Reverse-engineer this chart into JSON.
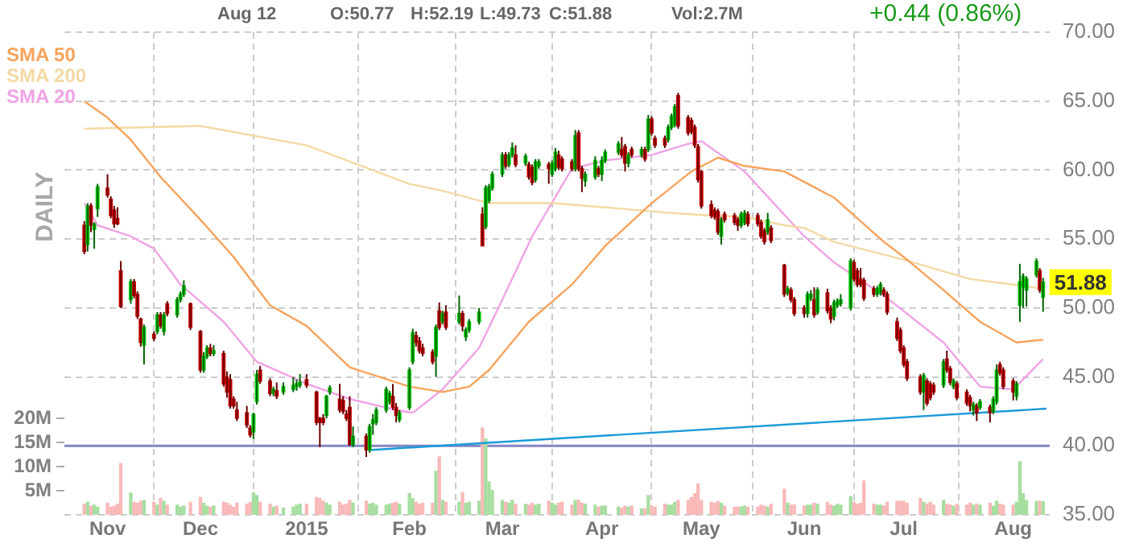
{
  "chart_data": {
    "type": "candlestick",
    "annotations": [
      "Aug 12",
      "O:50.77",
      "H:52.19",
      "L:49.73",
      "C:51.88",
      "Vol:2.7M",
      "+0.44 (0.86%)",
      "DAILY",
      {
        "text": "51.88",
        "x": "2015-08-12",
        "y": 51.88
      }
    ],
    "x": [
      "2014-10-27",
      "2014-10-28",
      "2014-10-29",
      "2014-10-30",
      "2014-10-31",
      "2014-11-03",
      "2014-11-04",
      "2014-11-05",
      "2014-11-06",
      "2014-11-07",
      "2014-11-10",
      "2014-11-11",
      "2014-11-12",
      "2014-11-13",
      "2014-11-14",
      "2014-11-17",
      "2014-11-18",
      "2014-11-19",
      "2014-11-20",
      "2014-11-21",
      "2014-11-24",
      "2014-11-25",
      "2014-11-26",
      "2014-11-28",
      "2014-12-01",
      "2014-12-02",
      "2014-12-03",
      "2014-12-04",
      "2014-12-05",
      "2014-12-08",
      "2014-12-09",
      "2014-12-10",
      "2014-12-11",
      "2014-12-12",
      "2014-12-15",
      "2014-12-16",
      "2014-12-17",
      "2014-12-18",
      "2014-12-19",
      "2014-12-22",
      "2014-12-23",
      "2014-12-24",
      "2014-12-26",
      "2014-12-29",
      "2014-12-30",
      "2014-12-31",
      "2015-01-02",
      "2015-01-05",
      "2015-01-06",
      "2015-01-07",
      "2015-01-08",
      "2015-01-09",
      "2015-01-12",
      "2015-01-13",
      "2015-01-14",
      "2015-01-15",
      "2015-01-16",
      "2015-01-20",
      "2015-01-21",
      "2015-01-22",
      "2015-01-23",
      "2015-01-26",
      "2015-01-27",
      "2015-01-28",
      "2015-01-29",
      "2015-01-30",
      "2015-02-02",
      "2015-02-03",
      "2015-02-04",
      "2015-02-05",
      "2015-02-06",
      "2015-02-09",
      "2015-02-10",
      "2015-02-11",
      "2015-02-12",
      "2015-02-13",
      "2015-02-17",
      "2015-02-18",
      "2015-02-19",
      "2015-02-20",
      "2015-02-23",
      "2015-02-24",
      "2015-02-25",
      "2015-02-26",
      "2015-02-27",
      "2015-03-02",
      "2015-03-03",
      "2015-03-04",
      "2015-03-05",
      "2015-03-06",
      "2015-03-09",
      "2015-03-10",
      "2015-03-11",
      "2015-03-12",
      "2015-03-13",
      "2015-03-16",
      "2015-03-17",
      "2015-03-18",
      "2015-03-19",
      "2015-03-20",
      "2015-03-23",
      "2015-03-24",
      "2015-03-25",
      "2015-03-26",
      "2015-03-27",
      "2015-03-30",
      "2015-03-31",
      "2015-04-01",
      "2015-04-02",
      "2015-04-06",
      "2015-04-07",
      "2015-04-08",
      "2015-04-09",
      "2015-04-10",
      "2015-04-13",
      "2015-04-14",
      "2015-04-15",
      "2015-04-16",
      "2015-04-17",
      "2015-04-20",
      "2015-04-21",
      "2015-04-22",
      "2015-04-23",
      "2015-04-24",
      "2015-04-27",
      "2015-04-28",
      "2015-04-29",
      "2015-04-30",
      "2015-05-01",
      "2015-05-04",
      "2015-05-05",
      "2015-05-06",
      "2015-05-07",
      "2015-05-08",
      "2015-05-11",
      "2015-05-12",
      "2015-05-13",
      "2015-05-14",
      "2015-05-15",
      "2015-05-18",
      "2015-05-19",
      "2015-05-20",
      "2015-05-21",
      "2015-05-22",
      "2015-05-26",
      "2015-05-27",
      "2015-05-28",
      "2015-05-29",
      "2015-06-01",
      "2015-06-02",
      "2015-06-03",
      "2015-06-04",
      "2015-06-05",
      "2015-06-08",
      "2015-06-09",
      "2015-06-10",
      "2015-06-11",
      "2015-06-12",
      "2015-06-15",
      "2015-06-16",
      "2015-06-17",
      "2015-06-18",
      "2015-06-19",
      "2015-06-22",
      "2015-06-23",
      "2015-06-24",
      "2015-06-25",
      "2015-06-26",
      "2015-06-29",
      "2015-06-30",
      "2015-07-01",
      "2015-07-02",
      "2015-07-06",
      "2015-07-07",
      "2015-07-08",
      "2015-07-09",
      "2015-07-10",
      "2015-07-13",
      "2015-07-14",
      "2015-07-15",
      "2015-07-16",
      "2015-07-17",
      "2015-07-20",
      "2015-07-21",
      "2015-07-22",
      "2015-07-23",
      "2015-07-24",
      "2015-07-27",
      "2015-07-28",
      "2015-07-29",
      "2015-07-30",
      "2015-07-31",
      "2015-08-03",
      "2015-08-04",
      "2015-08-05",
      "2015-08-06",
      "2015-08-07",
      "2015-08-10",
      "2015-08-11",
      "2015-08-12"
    ],
    "ohlc": [
      [
        56.0,
        56.3,
        53.9,
        54.1
      ],
      [
        54.6,
        57.6,
        54.1,
        57.4
      ],
      [
        57.4,
        57.6,
        55.5,
        56.0
      ],
      [
        55.7,
        56.2,
        54.3,
        56.1
      ],
      [
        57.2,
        59.0,
        56.6,
        58.8
      ],
      [
        58.7,
        59.7,
        58.0,
        58.2
      ],
      [
        57.9,
        58.1,
        56.5,
        56.7
      ],
      [
        57.1,
        57.4,
        55.8,
        56.1
      ],
      [
        56.5,
        57.3,
        56.0,
        56.1
      ],
      [
        52.7,
        53.4,
        50.0,
        50.1
      ],
      [
        50.6,
        52.1,
        50.3,
        51.9
      ],
      [
        51.9,
        52.1,
        50.7,
        50.9
      ],
      [
        51.0,
        51.2,
        49.2,
        49.4
      ],
      [
        49.2,
        49.3,
        47.2,
        47.5
      ],
      [
        47.3,
        48.8,
        45.9,
        48.6
      ],
      [
        48.1,
        48.3,
        47.6,
        47.8
      ],
      [
        48.3,
        49.7,
        48.1,
        49.5
      ],
      [
        49.5,
        49.7,
        48.5,
        48.7
      ],
      [
        48.3,
        49.7,
        48.0,
        49.5
      ],
      [
        50.3,
        50.5,
        49.4,
        49.6
      ],
      [
        49.5,
        50.8,
        49.3,
        50.6
      ],
      [
        50.6,
        51.2,
        50.4,
        51.0
      ],
      [
        51.0,
        52.0,
        50.8,
        51.6
      ],
      [
        50.3,
        50.4,
        48.4,
        48.6
      ],
      [
        48.3,
        48.4,
        45.3,
        45.5
      ],
      [
        45.5,
        46.8,
        45.3,
        46.5
      ],
      [
        46.5,
        47.3,
        46.3,
        47.1
      ],
      [
        47.1,
        47.4,
        46.5,
        46.7
      ],
      [
        46.7,
        47.3,
        46.5,
        46.9
      ],
      [
        46.7,
        46.9,
        44.3,
        44.5
      ],
      [
        45.0,
        45.4,
        43.5,
        43.9
      ],
      [
        44.8,
        45.2,
        42.7,
        42.9
      ],
      [
        43.4,
        43.6,
        42.7,
        42.9
      ],
      [
        42.6,
        43.2,
        41.8,
        42.0
      ],
      [
        42.4,
        42.9,
        41.3,
        41.5
      ],
      [
        41.3,
        41.5,
        40.6,
        40.8
      ],
      [
        41.0,
        42.4,
        40.5,
        42.3
      ],
      [
        43.2,
        45.5,
        43.0,
        45.2
      ],
      [
        45.5,
        45.8,
        44.5,
        44.7
      ],
      [
        44.7,
        44.9,
        43.6,
        43.8
      ],
      [
        43.8,
        44.3,
        43.6,
        44.1
      ],
      [
        44.0,
        44.6,
        43.4,
        43.6
      ],
      [
        43.9,
        44.6,
        43.7,
        44.3
      ],
      [
        44.1,
        45.0,
        43.9,
        44.4
      ],
      [
        44.3,
        44.8,
        44.0,
        44.5
      ],
      [
        44.4,
        45.2,
        44.2,
        44.6
      ],
      [
        44.8,
        45.2,
        44.2,
        44.4
      ],
      [
        43.9,
        44.0,
        41.5,
        41.7
      ],
      [
        42.0,
        42.1,
        39.9,
        41.7
      ],
      [
        42.0,
        42.3,
        41.5,
        41.7
      ],
      [
        42.2,
        43.7,
        42.0,
        43.6
      ],
      [
        43.9,
        44.4,
        43.7,
        44.2
      ],
      [
        43.4,
        44.5,
        42.4,
        42.6
      ],
      [
        43.3,
        43.6,
        42.3,
        42.5
      ],
      [
        42.3,
        42.6,
        41.8,
        42.0
      ],
      [
        42.8,
        43.6,
        40.0,
        40.1
      ],
      [
        40.1,
        41.4,
        39.9,
        40.7
      ],
      [
        40.7,
        40.9,
        39.2,
        39.7
      ],
      [
        39.7,
        41.6,
        39.5,
        41.4
      ],
      [
        41.6,
        42.3,
        40.8,
        41.9
      ],
      [
        41.7,
        42.8,
        41.5,
        42.6
      ],
      [
        42.6,
        44.3,
        42.4,
        44.1
      ],
      [
        43.2,
        44.0,
        43.0,
        43.8
      ],
      [
        43.6,
        44.5,
        42.6,
        42.8
      ],
      [
        42.8,
        43.1,
        41.7,
        42.2
      ],
      [
        41.9,
        42.6,
        41.7,
        42.4
      ],
      [
        42.8,
        45.7,
        42.6,
        45.5
      ],
      [
        46.1,
        48.5,
        45.9,
        48.2
      ],
      [
        48.0,
        48.3,
        47.2,
        47.5
      ],
      [
        47.6,
        47.9,
        46.7,
        46.9
      ],
      [
        47.1,
        47.4,
        46.5,
        46.7
      ],
      [
        46.8,
        47.0,
        45.9,
        46.1
      ],
      [
        46.5,
        48.8,
        45.0,
        48.6
      ],
      [
        49.8,
        50.4,
        48.4,
        48.6
      ],
      [
        49.0,
        49.8,
        48.8,
        49.6
      ],
      [
        49.7,
        50.2,
        48.4,
        48.6
      ],
      [
        49.0,
        50.9,
        48.8,
        49.6
      ],
      [
        49.6,
        49.8,
        48.3,
        48.7
      ],
      [
        47.9,
        48.6,
        47.6,
        48.4
      ],
      [
        48.4,
        49.2,
        48.2,
        49.0
      ],
      [
        49.0,
        50.0,
        48.8,
        49.7
      ],
      [
        56.8,
        57.3,
        54.5,
        54.5
      ],
      [
        55.9,
        58.9,
        55.7,
        58.7
      ],
      [
        57.8,
        59.0,
        57.6,
        58.8
      ],
      [
        58.7,
        59.9,
        58.5,
        59.7
      ],
      [
        59.7,
        61.3,
        59.5,
        61.1
      ],
      [
        61.1,
        61.3,
        60.1,
        60.3
      ],
      [
        60.4,
        61.3,
        60.2,
        61.1
      ],
      [
        61.1,
        62.0,
        60.9,
        61.6
      ],
      [
        61.1,
        61.8,
        60.2,
        60.4
      ],
      [
        60.5,
        61.2,
        60.3,
        61.0
      ],
      [
        60.4,
        60.6,
        59.3,
        59.5
      ],
      [
        60.2,
        60.4,
        58.9,
        59.1
      ],
      [
        59.3,
        60.8,
        59.1,
        60.6
      ],
      [
        60.3,
        60.8,
        60.1,
        60.6
      ],
      [
        60.4,
        60.6,
        59.0,
        60.1
      ],
      [
        59.7,
        60.7,
        59.5,
        60.5
      ],
      [
        60.1,
        61.6,
        59.9,
        61.3
      ],
      [
        61.1,
        61.4,
        60.0,
        60.2
      ],
      [
        60.8,
        61.0,
        59.9,
        60.1
      ],
      [
        60.6,
        60.8,
        59.9,
        60.1
      ],
      [
        60.1,
        62.9,
        59.9,
        62.5
      ],
      [
        62.7,
        62.9,
        59.9,
        60.1
      ],
      [
        60.1,
        60.3,
        58.4,
        59.4
      ],
      [
        59.2,
        59.9,
        58.8,
        59.7
      ],
      [
        59.5,
        61.0,
        59.3,
        60.7
      ],
      [
        60.1,
        60.3,
        59.5,
        59.7
      ],
      [
        59.7,
        61.0,
        59.2,
        60.7
      ],
      [
        60.7,
        61.5,
        60.5,
        61.3
      ],
      [
        61.3,
        62.1,
        61.1,
        61.9
      ],
      [
        61.5,
        62.4,
        60.9,
        61.1
      ],
      [
        61.7,
        61.9,
        59.9,
        60.5
      ],
      [
        60.5,
        61.3,
        60.2,
        61.1
      ],
      [
        61.5,
        61.7,
        60.9,
        61.1
      ],
      [
        61.1,
        61.7,
        60.9,
        61.5
      ],
      [
        61.5,
        61.7,
        60.6,
        60.8
      ],
      [
        61.5,
        64.0,
        61.3,
        63.7
      ],
      [
        63.7,
        63.9,
        62.5,
        62.7
      ],
      [
        62.3,
        62.5,
        61.6,
        61.8
      ],
      [
        62.3,
        62.5,
        61.6,
        61.8
      ],
      [
        62.2,
        63.3,
        62.0,
        63.1
      ],
      [
        63.1,
        64.1,
        62.9,
        63.9
      ],
      [
        63.3,
        64.8,
        63.1,
        64.6
      ],
      [
        65.4,
        65.6,
        63.0,
        63.2
      ],
      [
        63.8,
        64.0,
        62.5,
        62.7
      ],
      [
        63.6,
        63.8,
        62.6,
        62.8
      ],
      [
        63.1,
        63.3,
        61.6,
        61.8
      ],
      [
        61.7,
        61.9,
        59.1,
        59.3
      ],
      [
        59.9,
        60.0,
        57.2,
        57.4
      ],
      [
        57.5,
        57.8,
        56.5,
        56.7
      ],
      [
        57.1,
        57.3,
        56.4,
        56.6
      ],
      [
        57.0,
        57.2,
        55.3,
        55.5
      ],
      [
        55.2,
        56.6,
        54.6,
        56.4
      ],
      [
        56.8,
        57.0,
        56.2,
        56.4
      ],
      [
        56.7,
        56.9,
        56.0,
        56.2
      ],
      [
        56.4,
        56.6,
        55.6,
        56.0
      ],
      [
        56.0,
        57.0,
        55.8,
        56.8
      ],
      [
        56.2,
        57.1,
        56.0,
        56.9
      ],
      [
        56.8,
        57.0,
        55.9,
        56.1
      ],
      [
        56.7,
        56.9,
        55.9,
        56.1
      ],
      [
        56.2,
        56.4,
        55.0,
        55.2
      ],
      [
        55.6,
        55.8,
        54.6,
        54.8
      ],
      [
        55.5,
        56.9,
        55.3,
        56.4
      ],
      [
        55.8,
        56.0,
        54.7,
        54.9
      ],
      [
        53.1,
        53.2,
        50.8,
        51.0
      ],
      [
        51.1,
        51.6,
        50.9,
        51.4
      ],
      [
        51.3,
        51.5,
        50.4,
        50.6
      ],
      [
        50.6,
        50.8,
        49.4,
        49.6
      ],
      [
        50.0,
        50.2,
        49.3,
        49.6
      ],
      [
        49.6,
        51.2,
        49.3,
        51.0
      ],
      [
        50.7,
        51.3,
        50.5,
        51.0
      ],
      [
        50.6,
        51.5,
        49.3,
        49.5
      ],
      [
        49.7,
        51.5,
        49.5,
        51.3
      ],
      [
        51.1,
        51.4,
        49.6,
        49.8
      ],
      [
        50.0,
        50.2,
        48.9,
        49.2
      ],
      [
        49.4,
        50.6,
        49.1,
        50.4
      ],
      [
        50.2,
        50.7,
        50.0,
        50.5
      ],
      [
        50.3,
        51.0,
        50.1,
        50.6
      ],
      [
        50.0,
        53.6,
        49.8,
        53.4
      ],
      [
        53.3,
        53.5,
        51.9,
        52.1
      ],
      [
        52.7,
        52.9,
        51.5,
        51.7
      ],
      [
        52.1,
        52.9,
        51.5,
        51.7
      ],
      [
        52.0,
        52.2,
        50.5,
        50.7
      ],
      [
        51.4,
        51.6,
        50.8,
        51.0
      ],
      [
        51.0,
        51.6,
        50.8,
        51.4
      ],
      [
        51.1,
        51.9,
        50.9,
        51.7
      ],
      [
        51.3,
        51.5,
        50.8,
        51.0
      ],
      [
        51.0,
        51.2,
        49.5,
        49.7
      ],
      [
        49.0,
        49.3,
        47.6,
        47.8
      ],
      [
        48.4,
        48.6,
        46.7,
        46.9
      ],
      [
        47.1,
        47.3,
        45.7,
        45.9
      ],
      [
        46.1,
        46.3,
        44.7,
        44.9
      ],
      [
        45.0,
        45.2,
        43.7,
        43.9
      ],
      [
        43.9,
        45.3,
        42.6,
        45.1
      ],
      [
        44.7,
        44.9,
        42.9,
        43.1
      ],
      [
        44.5,
        44.7,
        43.3,
        43.5
      ],
      [
        44.4,
        44.6,
        43.7,
        43.9
      ],
      [
        44.4,
        46.3,
        44.2,
        46.1
      ],
      [
        46.3,
        46.9,
        45.3,
        45.5
      ],
      [
        45.6,
        45.8,
        44.4,
        44.6
      ],
      [
        44.3,
        44.9,
        44.1,
        44.7
      ],
      [
        44.5,
        44.7,
        43.3,
        43.5
      ],
      [
        43.9,
        44.1,
        42.9,
        43.1
      ],
      [
        43.5,
        43.7,
        42.5,
        42.9
      ],
      [
        42.6,
        43.2,
        42.2,
        43.0
      ],
      [
        42.9,
        43.1,
        41.8,
        42.4
      ],
      [
        42.8,
        43.4,
        42.6,
        43.2
      ],
      [
        42.8,
        43.0,
        41.7,
        42.4
      ],
      [
        42.5,
        43.6,
        42.3,
        43.4
      ],
      [
        43.2,
        45.9,
        43.0,
        45.5
      ],
      [
        45.9,
        46.1,
        45.1,
        45.3
      ],
      [
        45.5,
        45.7,
        44.1,
        44.3
      ],
      [
        44.7,
        44.9,
        43.3,
        43.9
      ],
      [
        43.6,
        44.7,
        43.3,
        44.5
      ],
      [
        50.2,
        53.2,
        49.0,
        51.9
      ],
      [
        51.5,
        52.5,
        50.0,
        52.3
      ],
      [
        51.3,
        52.3,
        50.1,
        52.1
      ],
      [
        52.4,
        53.6,
        52.2,
        53.4
      ],
      [
        52.7,
        52.9,
        51.1,
        51.3
      ],
      [
        50.77,
        52.19,
        49.73,
        51.88
      ]
    ],
    "xlim": [
      "2014-10-21",
      "2015-08-14"
    ],
    "xticks": [
      {
        "value": "2014-11-03",
        "label": "Nov"
      },
      {
        "value": "2014-12-01",
        "label": "Dec"
      },
      {
        "value": "2015-01-02",
        "label": "2015"
      },
      {
        "value": "2015-02-02",
        "label": "Feb"
      },
      {
        "value": "2015-03-02",
        "label": "Mar"
      },
      {
        "value": "2015-04-01",
        "label": "Apr"
      },
      {
        "value": "2015-05-01",
        "label": "May"
      },
      {
        "value": "2015-06-01",
        "label": "Jun"
      },
      {
        "value": "2015-07-01",
        "label": "Jul"
      },
      {
        "value": "2015-08-03",
        "label": "Aug"
      }
    ],
    "ylim": [
      35,
      70
    ],
    "yticks": [
      {
        "value": 35,
        "label": "35.00"
      },
      {
        "value": 40,
        "label": "40.00"
      },
      {
        "value": 45,
        "label": "45.00"
      },
      {
        "value": 50,
        "label": "50.00"
      },
      {
        "value": 55,
        "label": "55.00"
      },
      {
        "value": 60,
        "label": "60.00"
      },
      {
        "value": 65,
        "label": "65.00"
      },
      {
        "value": 70,
        "label": "70.00"
      }
    ],
    "y2lim": [
      0,
      100
    ],
    "y2ticks": [
      {
        "value": 5,
        "label": "5M"
      },
      {
        "value": 10,
        "label": "10M"
      },
      {
        "value": 15,
        "label": "15M"
      },
      {
        "value": 20,
        "label": "20M"
      }
    ],
    "series": [
      {
        "type": "bar",
        "axis": "y2",
        "colors": [
          "#f9b9b9",
          "#a6dea0",
          "#f9b9b9",
          "#a6dea0",
          "#a6dea0",
          "#f9b9b9",
          "#f9b9b9",
          "#f9b9b9",
          "#f9b9b9",
          "#f9b9b9",
          "#a6dea0",
          "#f9b9b9",
          "#f9b9b9",
          "#f9b9b9",
          "#a6dea0",
          "#f9b9b9",
          "#a6dea0",
          "#f9b9b9",
          "#a6dea0",
          "#f9b9b9",
          "#a6dea0",
          "#a6dea0",
          "#a6dea0",
          "#f9b9b9",
          "#f9b9b9",
          "#a6dea0",
          "#a6dea0",
          "#f9b9b9",
          "#a6dea0",
          "#f9b9b9",
          "#f9b9b9",
          "#f9b9b9",
          "#f9b9b9",
          "#f9b9b9",
          "#f9b9b9",
          "#f9b9b9",
          "#a6dea0",
          "#a6dea0",
          "#f9b9b9",
          "#f9b9b9",
          "#a6dea0",
          "#f9b9b9",
          "#a6dea0",
          "#a6dea0",
          "#a6dea0",
          "#a6dea0",
          "#f9b9b9",
          "#f9b9b9",
          "#f9b9b9",
          "#f9b9b9",
          "#a6dea0",
          "#a6dea0",
          "#f9b9b9",
          "#f9b9b9",
          "#f9b9b9",
          "#f9b9b9",
          "#a6dea0",
          "#f9b9b9",
          "#a6dea0",
          "#a6dea0",
          "#a6dea0",
          "#a6dea0",
          "#a6dea0",
          "#f9b9b9",
          "#f9b9b9",
          "#a6dea0",
          "#a6dea0",
          "#a6dea0",
          "#f9b9b9",
          "#f9b9b9",
          "#f9b9b9",
          "#f9b9b9",
          "#a6dea0",
          "#f9b9b9",
          "#a6dea0",
          "#f9b9b9",
          "#a6dea0",
          "#f9b9b9",
          "#a6dea0",
          "#a6dea0",
          "#a6dea0",
          "#f9b9b9",
          "#a6dea0",
          "#a6dea0",
          "#a6dea0",
          "#a6dea0",
          "#f9b9b9",
          "#a6dea0",
          "#a6dea0",
          "#f9b9b9",
          "#a6dea0",
          "#f9b9b9",
          "#f9b9b9",
          "#a6dea0",
          "#a6dea0",
          "#f9b9b9",
          "#a6dea0",
          "#a6dea0",
          "#f9b9b9",
          "#f9b9b9",
          "#f9b9b9",
          "#a6dea0",
          "#f9b9b9",
          "#f9b9b9",
          "#a6dea0",
          "#a6dea0",
          "#f9b9b9",
          "#a6dea0",
          "#a6dea0",
          "#a6dea0",
          "#f9b9b9",
          "#f9b9b9",
          "#a6dea0",
          "#f9b9b9",
          "#a6dea0",
          "#f9b9b9",
          "#a6dea0",
          "#f9b9b9",
          "#f9b9b9",
          "#f9b9b9",
          "#a6dea0",
          "#a6dea0",
          "#a6dea0",
          "#f9b9b9",
          "#f9b9b9",
          "#f9b9b9",
          "#f9b9b9",
          "#f9b9b9",
          "#f9b9b9",
          "#f9b9b9",
          "#f9b9b9",
          "#f9b9b9",
          "#a6dea0",
          "#f9b9b9",
          "#f9b9b9",
          "#f9b9b9",
          "#a6dea0",
          "#a6dea0",
          "#f9b9b9",
          "#f9b9b9",
          "#f9b9b9",
          "#f9b9b9",
          "#a6dea0",
          "#f9b9b9",
          "#f9b9b9",
          "#a6dea0",
          "#f9b9b9",
          "#f9b9b9",
          "#f9b9b9",
          "#a6dea0",
          "#a6dea0",
          "#f9b9b9",
          "#a6dea0",
          "#f9b9b9",
          "#f9b9b9",
          "#a6dea0",
          "#a6dea0",
          "#a6dea0",
          "#a6dea0",
          "#f9b9b9",
          "#f9b9b9",
          "#f9b9b9",
          "#f9b9b9",
          "#f9b9b9",
          "#a6dea0",
          "#a6dea0",
          "#f9b9b9",
          "#f9b9b9",
          "#f9b9b9",
          "#f9b9b9",
          "#f9b9b9",
          "#f9b9b9",
          "#f9b9b9",
          "#a6dea0",
          "#f9b9b9",
          "#f9b9b9",
          "#f9b9b9",
          "#a6dea0",
          "#f9b9b9",
          "#f9b9b9",
          "#a6dea0",
          "#f9b9b9",
          "#f9b9b9",
          "#f9b9b9",
          "#a6dea0",
          "#f9b9b9",
          "#a6dea0",
          "#f9b9b9",
          "#a6dea0",
          "#a6dea0",
          "#f9b9b9",
          "#f9b9b9",
          "#f9b9b9",
          "#a6dea0",
          "#a6dea0",
          "#a6dea0",
          "#a6dea0",
          "#a6dea0",
          "#f9b9b9",
          "#a6dea0"
        ],
        "values": [
          2.2,
          2.6,
          1.8,
          2.0,
          1.6,
          2.4,
          1.6,
          1.8,
          2.2,
          10.6,
          4.5,
          2.6,
          2.4,
          2.8,
          3.0,
          2.6,
          2.0,
          3.4,
          2.8,
          2.0,
          2.0,
          1.6,
          1.8,
          2.6,
          3.6,
          2.4,
          1.8,
          1.6,
          1.8,
          2.6,
          2.4,
          2.0,
          1.6,
          2.4,
          2.2,
          2.6,
          4.6,
          4.0,
          2.6,
          2.2,
          1.6,
          1.8,
          1.4,
          1.6,
          2.0,
          2.2,
          2.2,
          3.6,
          3.4,
          2.8,
          2.4,
          2.0,
          2.6,
          2.0,
          2.2,
          3.0,
          2.4,
          2.8,
          2.2,
          2.4,
          2.0,
          2.0,
          2.2,
          2.4,
          2.6,
          2.2,
          4.4,
          3.4,
          2.6,
          2.2,
          2.4,
          2.4,
          9.0,
          12.0,
          3.0,
          2.6,
          2.6,
          4.6,
          2.4,
          2.6,
          2.8,
          18.0,
          15.7,
          6.8,
          5.0,
          3.0,
          2.6,
          2.4,
          3.0,
          2.2,
          2.2,
          2.0,
          2.4,
          2.0,
          2.2,
          2.8,
          2.4,
          2.0,
          2.4,
          2.6,
          2.0,
          3.0,
          3.0,
          2.4,
          2.2,
          2.0,
          1.6,
          1.8,
          1.8,
          1.6,
          1.4,
          1.8,
          1.6,
          1.8,
          1.2,
          1.2,
          4.0,
          1.8,
          1.6,
          2.2,
          2.0,
          2.0,
          2.6,
          3.0,
          3.0,
          3.6,
          4.4,
          6.4,
          3.0,
          2.6,
          2.4,
          2.8,
          2.4,
          1.8,
          1.6,
          1.6,
          1.6,
          1.8,
          1.6,
          1.6,
          2.0,
          1.8,
          1.6,
          2.2,
          5.3,
          2.4,
          2.0,
          2.0,
          1.8,
          2.0,
          2.0,
          2.4,
          2.2,
          2.6,
          2.0,
          1.8,
          2.2,
          2.0,
          3.8,
          2.6,
          2.2,
          2.4,
          7.0,
          2.2,
          2.0,
          2.0,
          1.8,
          2.6,
          2.8,
          2.8,
          2.8,
          2.4,
          3.4,
          2.6,
          2.2,
          2.6,
          2.0,
          3.0,
          2.2,
          2.0,
          1.8,
          2.2,
          2.0,
          2.4,
          2.0,
          2.2,
          2.0,
          2.4,
          1.8,
          2.8,
          2.2,
          2.0,
          2.0,
          2.6,
          11.0,
          4.4,
          3.0,
          2.8,
          2.8,
          2.7
        ]
      },
      {
        "type": "line",
        "name": "SMA 50",
        "color": "#f7a35c",
        "x": [
          "2014-10-27",
          "2014-11-03",
          "2014-11-10",
          "2014-11-19",
          "2014-12-01",
          "2014-12-11",
          "2014-12-22",
          "2015-01-02",
          "2015-01-15",
          "2015-02-02",
          "2015-02-12",
          "2015-02-20",
          "2015-02-26",
          "2015-03-10",
          "2015-03-23",
          "2015-04-02",
          "2015-04-16",
          "2015-04-28",
          "2015-05-06",
          "2015-05-14",
          "2015-05-26",
          "2015-06-10",
          "2015-06-25",
          "2015-07-01",
          "2015-07-13",
          "2015-07-24",
          "2015-08-04",
          "2015-08-12"
        ],
        "values": [
          65.0,
          63.8,
          62.2,
          59.5,
          56.4,
          53.7,
          50.2,
          48.7,
          45.7,
          44.3,
          43.9,
          44.3,
          45.5,
          49.0,
          51.7,
          54.5,
          57.6,
          59.9,
          60.9,
          60.3,
          59.9,
          58.0,
          54.8,
          53.7,
          51.3,
          49.0,
          47.5,
          47.7
        ]
      },
      {
        "type": "line",
        "name": "SMA 200",
        "color": "#f3d9a4",
        "x": [
          "2014-10-27",
          "2014-12-01",
          "2015-01-02",
          "2015-02-02",
          "2015-02-12",
          "2015-02-26",
          "2015-03-17",
          "2015-04-02",
          "2015-04-21",
          "2015-05-04",
          "2015-05-14",
          "2015-05-26",
          "2015-06-01",
          "2015-06-10",
          "2015-07-01",
          "2015-07-21",
          "2015-08-03",
          "2015-08-12"
        ],
        "values": [
          63.0,
          63.2,
          61.8,
          59.0,
          58.5,
          57.6,
          57.6,
          57.3,
          56.9,
          56.7,
          56.6,
          56.0,
          55.8,
          54.8,
          53.5,
          52.1,
          51.7,
          51.4
        ]
      },
      {
        "type": "line",
        "name": "SMA 20",
        "color": "#f0a3e6",
        "x": [
          "2014-10-27",
          "2014-10-31",
          "2014-11-10",
          "2014-11-17",
          "2014-11-25",
          "2014-12-08",
          "2014-12-18",
          "2015-01-02",
          "2015-01-15",
          "2015-01-29",
          "2015-02-03",
          "2015-02-12",
          "2015-02-23",
          "2015-03-02",
          "2015-03-11",
          "2015-03-23",
          "2015-04-02",
          "2015-04-16",
          "2015-04-27",
          "2015-05-01",
          "2015-05-14",
          "2015-05-22",
          "2015-06-01",
          "2015-06-10",
          "2015-06-25",
          "2015-07-13",
          "2015-07-24",
          "2015-08-03",
          "2015-08-12"
        ],
        "values": [
          57.6,
          56.0,
          55.2,
          54.3,
          51.7,
          49.0,
          46.1,
          44.5,
          43.4,
          42.6,
          42.4,
          44.1,
          47.1,
          50.6,
          55.2,
          60.1,
          60.7,
          61.1,
          61.9,
          62.1,
          59.9,
          57.8,
          55.2,
          53.3,
          50.9,
          47.5,
          44.3,
          44.1,
          46.3
        ]
      },
      {
        "type": "line",
        "color": "#1a9ad9",
        "x": [
          "2015-01-21",
          "2015-08-13"
        ],
        "values": [
          39.7,
          42.7
        ]
      }
    ],
    "ref_lines": [
      {
        "axis": "y",
        "value": 40,
        "color": "#8484c4"
      }
    ],
    "grid": true,
    "legend": "top left",
    "marker": "none",
    "line_style": "solid"
  }
}
